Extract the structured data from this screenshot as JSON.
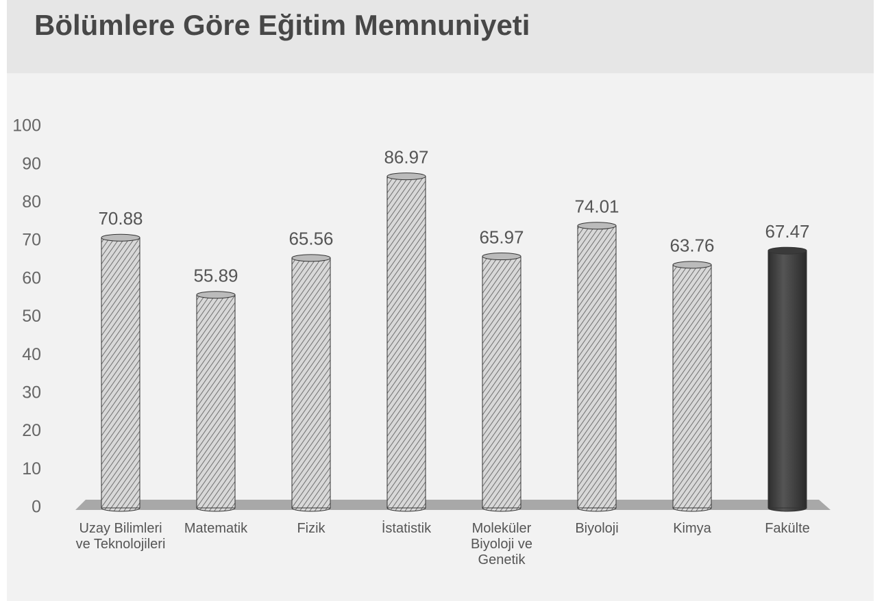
{
  "chart_data": {
    "type": "bar",
    "title": "Bölümlere Göre Eğitim Memnuniyeti",
    "categories": [
      "Uzay Bilimleri ve Teknolojileri",
      "Matematik",
      "Fizik",
      "İstatistik",
      "Moleküler Biyoloji ve Genetik",
      "Biyoloji",
      "Kimya",
      "Fakülte"
    ],
    "values": [
      70.88,
      55.89,
      65.56,
      86.97,
      65.97,
      74.01,
      63.76,
      67.47
    ],
    "colors": [
      "#d4d4d4",
      "#d4d4d4",
      "#d4d4d4",
      "#d4d4d4",
      "#d4d4d4",
      "#d4d4d4",
      "#d4d4d4",
      "#404040"
    ],
    "hatch": [
      true,
      true,
      true,
      true,
      true,
      true,
      true,
      false
    ],
    "ylim": [
      0,
      100
    ],
    "yticks": [
      0,
      10,
      20,
      30,
      40,
      50,
      60,
      70,
      80,
      90,
      100
    ],
    "grid": false
  }
}
